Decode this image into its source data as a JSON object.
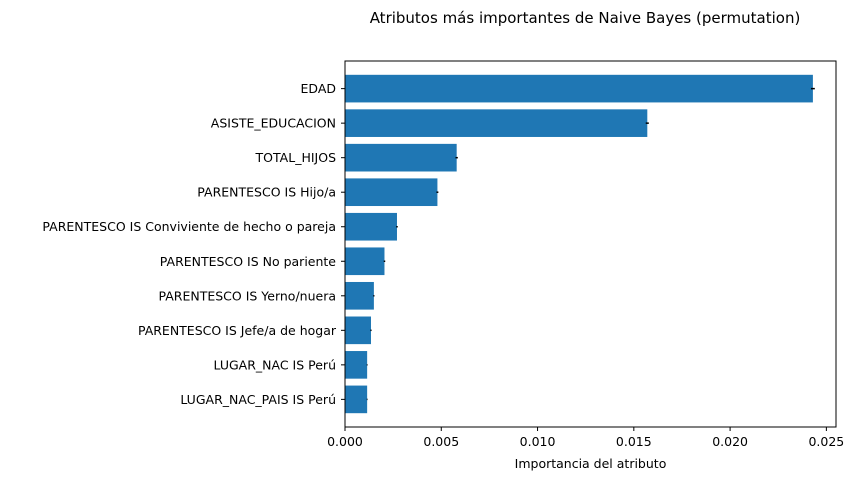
{
  "chart_data": {
    "type": "bar",
    "orientation": "horizontal",
    "title": "Atributos más importantes de Naive Bayes (permutation)",
    "xlabel": "Importancia del atributo",
    "ylabel": "",
    "xlim": [
      0.0,
      0.0255
    ],
    "x_ticks": [
      0.0,
      0.005,
      0.01,
      0.015,
      0.02,
      0.025
    ],
    "x_tick_labels": [
      "0.000",
      "0.005",
      "0.010",
      "0.015",
      "0.020",
      "0.025"
    ],
    "grid": false,
    "bar_color": "#1f77b4",
    "error_color": "#000000",
    "categories": [
      "EDAD",
      "ASISTE_EDUCACION",
      "TOTAL_HIJOS",
      "PARENTESCO IS Hijo/a",
      "PARENTESCO IS Conviviente de hecho o pareja",
      "PARENTESCO IS No pariente",
      "PARENTESCO IS Yerno/nuera",
      "PARENTESCO IS Jefe/a de hogar",
      "LUGAR_NAC IS Perú",
      "LUGAR_NAC_PAIS IS Perú"
    ],
    "values": [
      0.0243,
      0.0157,
      0.0058,
      0.0048,
      0.0027,
      0.00205,
      0.0015,
      0.00135,
      0.00115,
      0.00115
    ],
    "errors": [
      0.0001,
      8e-05,
      6e-05,
      5e-05,
      4e-05,
      4e-05,
      3e-05,
      3e-05,
      2e-05,
      2e-05
    ]
  }
}
